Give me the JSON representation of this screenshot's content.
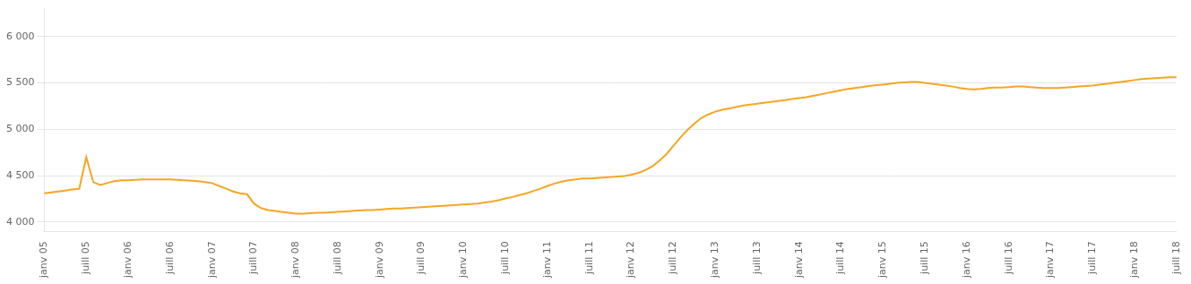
{
  "chart_data": {
    "type": "line",
    "categories": [
      "janv 05",
      null,
      null,
      null,
      null,
      null,
      "juill 05",
      null,
      null,
      null,
      null,
      null,
      "janv 06",
      null,
      null,
      null,
      null,
      null,
      "juill 06",
      null,
      null,
      null,
      null,
      null,
      "janv 07",
      null,
      null,
      null,
      null,
      null,
      "juill 07",
      null,
      null,
      null,
      null,
      null,
      "janv 08",
      null,
      null,
      null,
      null,
      null,
      "juill 08",
      null,
      null,
      null,
      null,
      null,
      "janv 09",
      null,
      null,
      null,
      null,
      null,
      "juill 09",
      null,
      null,
      null,
      null,
      null,
      "janv 10",
      null,
      null,
      null,
      null,
      null,
      "juill 10",
      null,
      null,
      null,
      null,
      null,
      "janv 11",
      null,
      null,
      null,
      null,
      null,
      "juill 11",
      null,
      null,
      null,
      null,
      null,
      "janv 12",
      null,
      null,
      null,
      null,
      null,
      "juill 12",
      null,
      null,
      null,
      null,
      null,
      "janv 13",
      null,
      null,
      null,
      null,
      null,
      "juill 13",
      null,
      null,
      null,
      null,
      null,
      "janv 14",
      null,
      null,
      null,
      null,
      null,
      "juill 14",
      null,
      null,
      null,
      null,
      null,
      "janv 15",
      null,
      null,
      null,
      null,
      null,
      "juill 15",
      null,
      null,
      null,
      null,
      null,
      "janv 16",
      null,
      null,
      null,
      null,
      null,
      "juill 16",
      null,
      null,
      null,
      null,
      null,
      "janv 17",
      null,
      null,
      null,
      null,
      null,
      "juill 17",
      null,
      null,
      null,
      null,
      null,
      "janv 18",
      null,
      null,
      null,
      null,
      null,
      "juill 18"
    ],
    "values": [
      4310,
      4320,
      4330,
      4340,
      4350,
      4360,
      4700,
      4430,
      4400,
      4420,
      4440,
      4450,
      4450,
      4455,
      4460,
      4460,
      4460,
      4460,
      4460,
      4455,
      4450,
      4445,
      4440,
      4430,
      4420,
      4390,
      4360,
      4330,
      4310,
      4300,
      4200,
      4150,
      4130,
      4120,
      4110,
      4100,
      4090,
      4090,
      4095,
      4100,
      4100,
      4105,
      4110,
      4115,
      4120,
      4125,
      4130,
      4130,
      4135,
      4140,
      4145,
      4145,
      4150,
      4155,
      4160,
      4165,
      4170,
      4175,
      4180,
      4185,
      4190,
      4195,
      4200,
      4210,
      4220,
      4235,
      4255,
      4270,
      4290,
      4310,
      4335,
      4360,
      4390,
      4415,
      4435,
      4450,
      4460,
      4470,
      4470,
      4475,
      4480,
      4485,
      4490,
      4495,
      4510,
      4530,
      4560,
      4600,
      4660,
      4730,
      4820,
      4910,
      4990,
      5060,
      5120,
      5160,
      5190,
      5210,
      5225,
      5240,
      5255,
      5265,
      5275,
      5285,
      5295,
      5305,
      5315,
      5325,
      5335,
      5345,
      5360,
      5375,
      5390,
      5405,
      5420,
      5435,
      5445,
      5455,
      5465,
      5475,
      5480,
      5490,
      5500,
      5505,
      5510,
      5510,
      5500,
      5490,
      5480,
      5470,
      5460,
      5445,
      5435,
      5430,
      5435,
      5445,
      5450,
      5450,
      5455,
      5460,
      5460,
      5455,
      5450,
      5445,
      5445,
      5445,
      5450,
      5455,
      5460,
      5465,
      5470,
      5480,
      5490,
      5500,
      5510,
      5520,
      5530,
      5540,
      5545,
      5550,
      5555,
      5560,
      5560
    ],
    "color": "#F5A623",
    "ylim": [
      3900,
      6300
    ],
    "yticks": [
      {
        "value": 4000,
        "label": "4 000"
      },
      {
        "value": 4500,
        "label": "4 500"
      },
      {
        "value": 5000,
        "label": "5 000"
      },
      {
        "value": 5500,
        "label": "5 500"
      },
      {
        "value": 6000,
        "label": "6 000"
      }
    ],
    "grid": true
  }
}
